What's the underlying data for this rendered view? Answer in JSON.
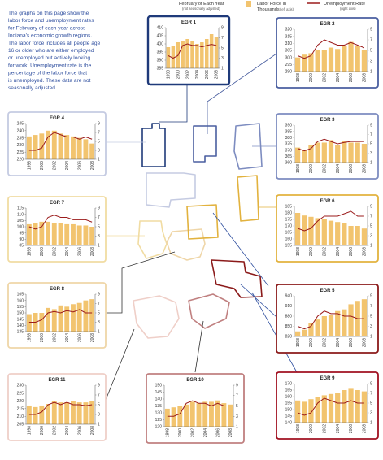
{
  "intro": [
    "The graphs on this page show the",
    "labor force and unemployment rates",
    "for February of each year across",
    "Indiana's economic growth regions.",
    "The labor force includes all people age",
    "16 or older who are either employed",
    "or unemployed but actively looking",
    "for work. Unemployment rate is the",
    "percentage of the labor force that",
    "is unemployed. These data are not",
    "seasonally adjusted."
  ],
  "legend": {
    "period": "February of Each Year",
    "period_note": "(not seasonally adjusted)",
    "bars": [
      "Labor Force in",
      "Thousands"
    ],
    "bars_note": "(left axis)",
    "bars_color": "#f2c46f",
    "line": "Unemployment Rate",
    "line_note": "(right axis)",
    "line_color": "#9b1b1b"
  },
  "chart_data": [
    {
      "type": "bar-line",
      "title": "EGR 1",
      "frame_color": "#1f3a7a",
      "categories": [
        "1998",
        null,
        "2000",
        null,
        "2002",
        null,
        "2004",
        null,
        "2006",
        null,
        "2008"
      ],
      "ylim": [
        385,
        410
      ],
      "yticks": [
        385,
        390,
        395,
        400,
        405,
        410
      ],
      "y2lim": [
        1,
        9
      ],
      "y2ticks": [
        1,
        3,
        5,
        7,
        9
      ],
      "series": [
        {
          "color": "#f2c46f",
          "values": [
            398,
            399,
            401,
            402,
            403,
            402,
            400,
            401,
            403,
            406,
            404
          ]
        },
        {
          "color": "#9b1b1b",
          "axis": "y2",
          "values": [
            3.5,
            3,
            3.5,
            5.5,
            5.8,
            5.5,
            5.5,
            5.2,
            5.5,
            5.7,
            5.5
          ]
        }
      ]
    },
    {
      "type": "bar-line",
      "title": "EGR 2",
      "frame_color": "#4a5fa0",
      "categories": [
        "1998",
        null,
        "2000",
        null,
        "2002",
        null,
        "2004",
        null,
        "2006",
        null,
        "2008"
      ],
      "ylim": [
        290,
        320
      ],
      "yticks": [
        290,
        295,
        300,
        305,
        310,
        315,
        320
      ],
      "y2lim": [
        1,
        9
      ],
      "y2ticks": [
        1,
        3,
        5,
        7,
        9
      ],
      "series": [
        {
          "color": "#f2c46f",
          "values": [
            300,
            302,
            303,
            305,
            305,
            307,
            306,
            308,
            311,
            308,
            305
          ]
        },
        {
          "color": "#9b1b1b",
          "axis": "y2",
          "values": [
            4,
            3.5,
            4,
            6,
            7,
            6.5,
            6,
            6,
            6.5,
            6,
            5.5
          ]
        }
      ]
    },
    {
      "type": "bar-line",
      "title": "EGR 4",
      "frame_color": "#c5cbe2",
      "categories": [
        "1998",
        null,
        "2000",
        null,
        "2002",
        null,
        "2004",
        null,
        "2006",
        null,
        "2008"
      ],
      "ylim": [
        220,
        245
      ],
      "yticks": [
        220,
        225,
        230,
        235,
        240,
        245
      ],
      "y2lim": [
        1,
        9
      ],
      "y2ticks": [
        1,
        3,
        5,
        7,
        9
      ],
      "series": [
        {
          "color": "#f2c46f",
          "values": [
            236,
            237,
            238,
            240,
            240,
            238,
            237,
            236,
            235,
            234,
            231
          ]
        },
        {
          "color": "#9b1b1b",
          "axis": "y2",
          "values": [
            3,
            3,
            3.5,
            6,
            7,
            6.5,
            6,
            6,
            5.5,
            6,
            5.5
          ]
        }
      ]
    },
    {
      "type": "bar-line",
      "title": "EGR 3",
      "frame_color": "#7d8cc0",
      "categories": [
        "1998",
        null,
        "2000",
        null,
        "2002",
        null,
        "2004",
        null,
        "2006",
        null,
        "2008"
      ],
      "ylim": [
        360,
        390
      ],
      "yticks": [
        360,
        365,
        370,
        375,
        380,
        385,
        390
      ],
      "y2lim": [
        1,
        9
      ],
      "y2ticks": [
        1,
        3,
        5,
        7,
        9
      ],
      "series": [
        {
          "color": "#f2c46f",
          "values": [
            372,
            370,
            374,
            376,
            376,
            378,
            374,
            377,
            376,
            376,
            375
          ]
        },
        {
          "color": "#9b1b1b",
          "axis": "y2",
          "values": [
            4,
            3.5,
            4,
            5.5,
            6,
            5.5,
            5,
            5.3,
            5.5,
            5.5,
            5.5
          ]
        }
      ]
    },
    {
      "type": "bar-line",
      "title": "EGR 7",
      "frame_color": "#f1dca2",
      "categories": [
        "1998",
        null,
        "2000",
        null,
        "2002",
        null,
        "2004",
        null,
        "2006",
        null,
        "2008"
      ],
      "ylim": [
        85,
        115
      ],
      "yticks": [
        85,
        90,
        95,
        100,
        105,
        110,
        115
      ],
      "y2lim": [
        1,
        9
      ],
      "y2ticks": [
        1,
        3,
        5,
        7,
        9
      ],
      "series": [
        {
          "color": "#f2c46f",
          "values": [
            102,
            103,
            104,
            104,
            103,
            103,
            102,
            102,
            101,
            101,
            100
          ]
        },
        {
          "color": "#9b1b1b",
          "axis": "y2",
          "values": [
            5,
            4.5,
            5,
            7,
            7.5,
            7,
            7,
            6.5,
            6.5,
            6.5,
            6
          ]
        }
      ]
    },
    {
      "type": "bar-line",
      "title": "EGR 6",
      "frame_color": "#e2b23e",
      "categories": [
        "1998",
        null,
        "2000",
        null,
        "2002",
        null,
        "2004",
        null,
        "2006",
        null,
        "2008"
      ],
      "ylim": [
        155,
        185
      ],
      "yticks": [
        155,
        160,
        165,
        170,
        175,
        180,
        185
      ],
      "y2lim": [
        1,
        9
      ],
      "y2ticks": [
        1,
        3,
        5,
        7,
        9
      ],
      "series": [
        {
          "color": "#f2c46f",
          "values": [
            180,
            178,
            177,
            176,
            175,
            174,
            173,
            172,
            170,
            170,
            168
          ]
        },
        {
          "color": "#9b1b1b",
          "axis": "y2",
          "values": [
            4.5,
            4,
            4.5,
            6,
            7,
            7,
            7,
            7.5,
            8,
            7,
            7
          ]
        }
      ]
    },
    {
      "type": "bar-line",
      "title": "EGR 8",
      "frame_color": "#efd6a8",
      "categories": [
        "1998",
        null,
        "2000",
        null,
        "2002",
        null,
        "2004",
        null,
        "2006",
        null,
        "2008"
      ],
      "ylim": [
        135,
        165
      ],
      "yticks": [
        135,
        140,
        145,
        150,
        155,
        160,
        165
      ],
      "y2lim": [
        1,
        9
      ],
      "y2ticks": [
        1,
        3,
        5,
        7,
        9
      ],
      "series": [
        {
          "color": "#f2c46f",
          "values": [
            149,
            150,
            150,
            154,
            153,
            156,
            155,
            157,
            158,
            160,
            161
          ]
        },
        {
          "color": "#9b1b1b",
          "axis": "y2",
          "values": [
            3,
            3,
            3.5,
            5,
            5.3,
            5,
            5.5,
            5.2,
            5.7,
            5,
            5
          ]
        }
      ]
    },
    {
      "type": "bar-line",
      "title": "EGR 5",
      "frame_color": "#8b1a1a",
      "categories": [
        "1998",
        null,
        "2000",
        null,
        "2002",
        null,
        "2004",
        null,
        "2006",
        null,
        "2008"
      ],
      "ylim": [
        820,
        940
      ],
      "yticks": [
        820,
        850,
        880,
        910,
        940
      ],
      "y2lim": [
        1,
        9
      ],
      "y2ticks": [
        1,
        3,
        5,
        7,
        9
      ],
      "series": [
        {
          "color": "#f2c46f",
          "values": [
            835,
            840,
            860,
            870,
            880,
            885,
            895,
            900,
            915,
            925,
            930
          ]
        },
        {
          "color": "#9b1b1b",
          "axis": "y2",
          "values": [
            3,
            2.5,
            3,
            5,
            6,
            5.5,
            5.5,
            5,
            5,
            4.5,
            4.5
          ]
        }
      ]
    },
    {
      "type": "bar-line",
      "title": "EGR 11",
      "frame_color": "#efcfc8",
      "categories": [
        "1998",
        null,
        "2000",
        null,
        "2002",
        null,
        "2004",
        null,
        "2006",
        null,
        "2008"
      ],
      "ylim": [
        205,
        230
      ],
      "yticks": [
        205,
        210,
        215,
        220,
        225,
        230
      ],
      "y2lim": [
        1,
        9
      ],
      "y2ticks": [
        1,
        3,
        5,
        7,
        9
      ],
      "series": [
        {
          "color": "#f2c46f",
          "values": [
            217,
            216,
            217,
            218,
            220,
            219,
            219,
            220,
            219,
            219,
            220
          ]
        },
        {
          "color": "#9b1b1b",
          "axis": "y2",
          "values": [
            3,
            3,
            3.5,
            5,
            5.5,
            5,
            5.5,
            5,
            5,
            4.8,
            5
          ]
        }
      ]
    },
    {
      "type": "bar-line",
      "title": "EGR 10",
      "frame_color": "#c08080",
      "categories": [
        "1998",
        null,
        "2000",
        null,
        "2002",
        null,
        "2004",
        null,
        "2006",
        null,
        "2008"
      ],
      "ylim": [
        120,
        150
      ],
      "yticks": [
        120,
        125,
        130,
        135,
        140,
        145,
        150
      ],
      "y2lim": [
        1,
        9
      ],
      "y2ticks": [
        1,
        3,
        5,
        7,
        9
      ],
      "series": [
        {
          "color": "#f2c46f",
          "values": [
            133,
            134,
            135,
            136,
            138,
            137,
            138,
            138,
            139,
            137,
            136
          ]
        },
        {
          "color": "#9b1b1b",
          "axis": "y2",
          "values": [
            3,
            3,
            3.5,
            5.5,
            6,
            5.5,
            5.5,
            5,
            5.5,
            5,
            5
          ]
        }
      ]
    },
    {
      "type": "bar-line",
      "title": "EGR 9",
      "frame_color": "#a01020",
      "categories": [
        "1998",
        null,
        "2000",
        null,
        "2002",
        null,
        "2004",
        null,
        "2006",
        null,
        "2008"
      ],
      "ylim": [
        140,
        170
      ],
      "yticks": [
        140,
        145,
        150,
        155,
        160,
        165,
        170
      ],
      "y2lim": [
        1,
        9
      ],
      "y2ticks": [
        1,
        3,
        5,
        7,
        9
      ],
      "series": [
        {
          "color": "#f2c46f",
          "values": [
            157,
            156,
            158,
            160,
            161,
            162,
            163,
            165,
            166,
            165,
            164
          ]
        },
        {
          "color": "#9b1b1b",
          "axis": "y2",
          "values": [
            3,
            2.5,
            3,
            5,
            6,
            5.5,
            5,
            5,
            5.5,
            5,
            5
          ]
        }
      ]
    }
  ]
}
